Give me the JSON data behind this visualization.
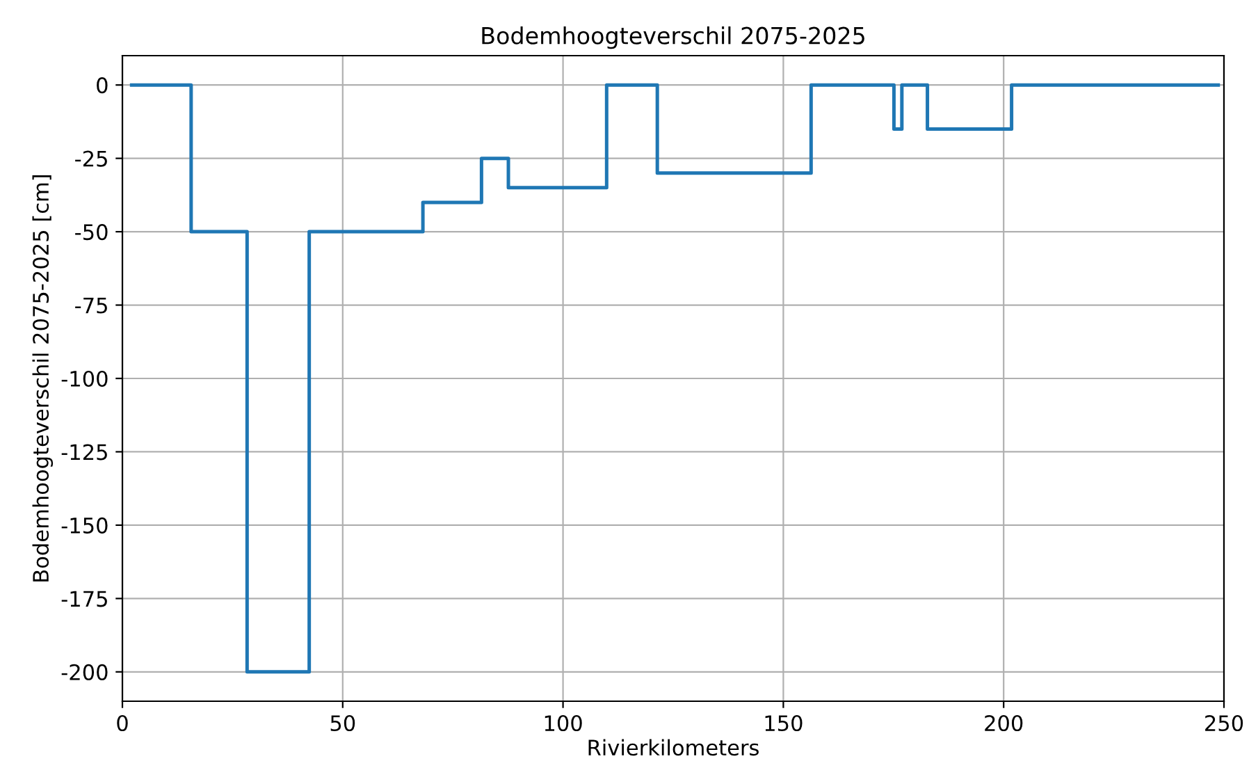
{
  "chart_data": {
    "type": "step",
    "title": "Bodemhoogteverschil 2075-2025",
    "xlabel": "Rivierkilometers",
    "ylabel": "Bodemhoogteverschil 2075-2025 [cm]",
    "x": [
      2.1,
      15.6,
      28.3,
      42.4,
      68.2,
      81.5,
      87.6,
      109.9,
      121.4,
      156.3,
      175.1,
      176.9,
      182.7,
      201.8,
      248.7
    ],
    "series": [
      {
        "color": "#1f77b4",
        "values": [
          0,
          -50,
          -200,
          -50,
          -40,
          -25,
          -35,
          0,
          -30,
          0,
          -15,
          0,
          -15,
          0,
          0
        ]
      }
    ],
    "xlim": [
      0,
      250
    ],
    "xticks": [
      0,
      50,
      100,
      150,
      200,
      250
    ],
    "ylim": [
      -210,
      10
    ],
    "yticks": [
      -200,
      -175,
      -150,
      -125,
      -100,
      -75,
      -50,
      -25,
      0
    ],
    "grid": true
  }
}
